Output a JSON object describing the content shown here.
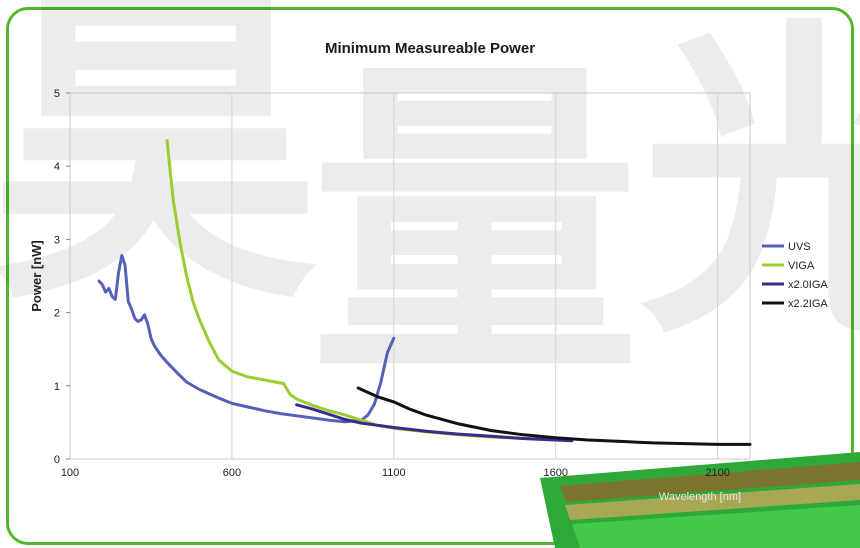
{
  "chart_data": {
    "type": "line",
    "title": "Minimum Measureable Power",
    "xlabel": "Wavelength [nm]",
    "ylabel": "Power [nW]",
    "xlim": [
      100,
      2200
    ],
    "ylim": [
      0,
      5
    ],
    "x_ticks": [
      "100",
      "600",
      "1100",
      "1600",
      "2100"
    ],
    "y_ticks": [
      "0",
      "1",
      "2",
      "3",
      "4",
      "5"
    ],
    "grid": "vertical",
    "legend_position": "right",
    "series": [
      {
        "name": "UVS",
        "color": "#5560b8",
        "x": [
          190,
          200,
          210,
          220,
          230,
          240,
          250,
          260,
          270,
          280,
          290,
          300,
          310,
          320,
          330,
          340,
          350,
          360,
          380,
          400,
          430,
          460,
          500,
          550,
          600,
          650,
          700,
          750,
          800,
          850,
          900,
          950,
          1000,
          1020,
          1040,
          1060,
          1080,
          1100
        ],
        "y": [
          2.43,
          2.38,
          2.28,
          2.33,
          2.22,
          2.18,
          2.55,
          2.78,
          2.65,
          2.15,
          2.05,
          1.92,
          1.88,
          1.9,
          1.97,
          1.85,
          1.65,
          1.55,
          1.42,
          1.32,
          1.18,
          1.05,
          0.95,
          0.85,
          0.76,
          0.71,
          0.66,
          0.62,
          0.59,
          0.56,
          0.53,
          0.51,
          0.53,
          0.6,
          0.75,
          1.05,
          1.45,
          1.65
        ]
      },
      {
        "name": "VIGA",
        "color": "#9acd32",
        "x": [
          400,
          410,
          420,
          440,
          460,
          480,
          500,
          530,
          560,
          600,
          650,
          700,
          760,
          780,
          800,
          850,
          900,
          950,
          1000,
          1050,
          1100,
          1200,
          1300,
          1400,
          1500,
          1600
        ],
        "y": [
          4.35,
          3.9,
          3.5,
          2.95,
          2.5,
          2.15,
          1.9,
          1.6,
          1.35,
          1.2,
          1.12,
          1.08,
          1.03,
          0.88,
          0.82,
          0.73,
          0.66,
          0.6,
          0.53,
          0.46,
          0.42,
          0.37,
          0.33,
          0.3,
          0.28,
          0.26
        ]
      },
      {
        "name": "x2.0IGA",
        "color": "#3a2a8a",
        "x": [
          800,
          850,
          900,
          950,
          1000,
          1050,
          1100,
          1200,
          1300,
          1400,
          1500,
          1600,
          1650
        ],
        "y": [
          0.74,
          0.68,
          0.61,
          0.54,
          0.49,
          0.46,
          0.43,
          0.38,
          0.34,
          0.31,
          0.28,
          0.26,
          0.25
        ]
      },
      {
        "name": "x2.2IGA",
        "color": "#111111",
        "x": [
          990,
          1050,
          1100,
          1150,
          1200,
          1300,
          1400,
          1500,
          1600,
          1700,
          1800,
          1900,
          2000,
          2100,
          2200
        ],
        "y": [
          0.97,
          0.85,
          0.78,
          0.68,
          0.6,
          0.48,
          0.39,
          0.33,
          0.29,
          0.26,
          0.24,
          0.22,
          0.21,
          0.2,
          0.2
        ]
      }
    ]
  },
  "watermark": {
    "chars": [
      "昊",
      "量",
      "光"
    ],
    "color": "#000000"
  },
  "colors": {
    "frame_border": "#52b829",
    "banner_green": "#3fbf3a"
  }
}
